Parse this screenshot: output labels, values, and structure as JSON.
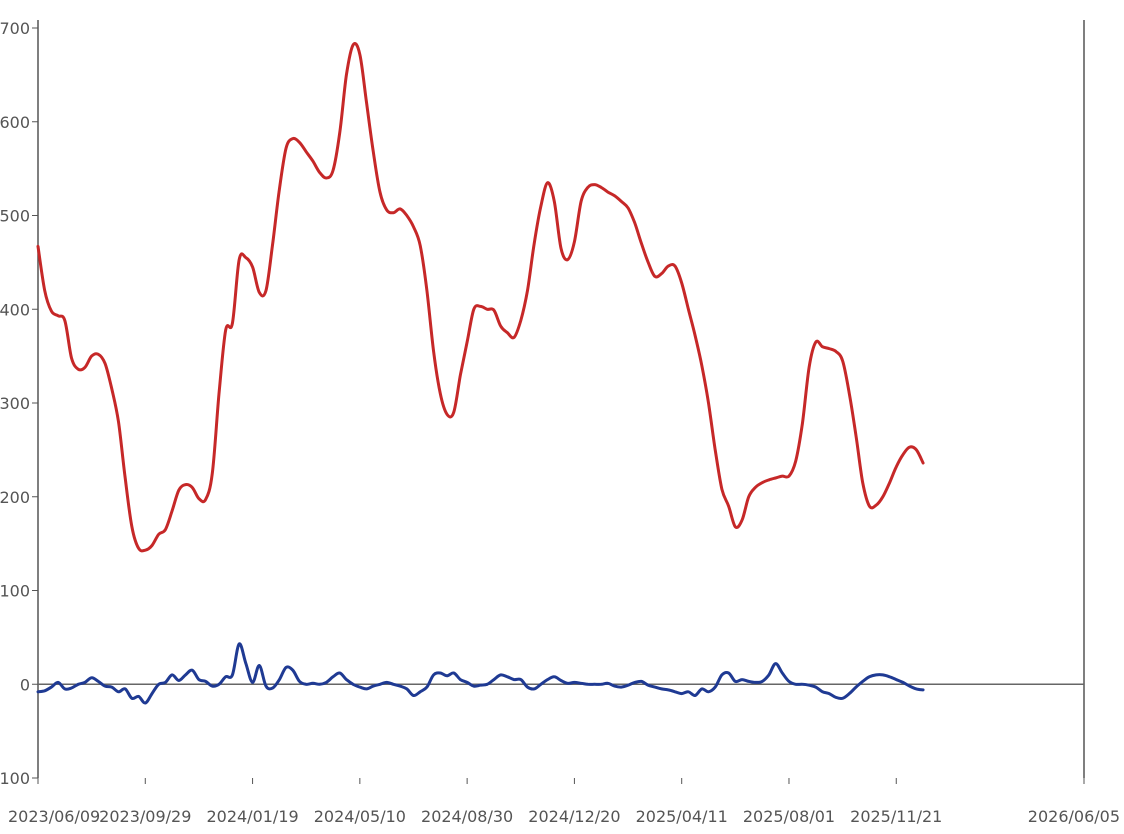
{
  "chart_data": {
    "type": "line",
    "title": "",
    "xlabel": "",
    "ylabel": "",
    "xlim": [
      "2023-06-09",
      "2026-06-05"
    ],
    "ylim": [
      -100,
      700
    ],
    "grid": false,
    "legend": "none",
    "y_ticks": [
      {
        "value": -100,
        "label": "-100"
      },
      {
        "value": 0,
        "label": "0"
      },
      {
        "value": 100,
        "label": "100"
      },
      {
        "value": 200,
        "label": "200"
      },
      {
        "value": 300,
        "label": "300"
      },
      {
        "value": 400,
        "label": "400"
      },
      {
        "value": 500,
        "label": "500"
      },
      {
        "value": 600,
        "label": "600"
      },
      {
        "value": 700,
        "label": "700"
      }
    ],
    "x_ticks": [
      {
        "value": "2023-06-09",
        "label": "2023/06/09"
      },
      {
        "value": "2023-09-29",
        "label": "2023/09/29"
      },
      {
        "value": "2024-01-19",
        "label": "2024/01/19"
      },
      {
        "value": "2024-05-10",
        "label": "2024/05/10"
      },
      {
        "value": "2024-08-30",
        "label": "2024/08/30"
      },
      {
        "value": "2024-12-20",
        "label": "2024/12/20"
      },
      {
        "value": "2025-04-11",
        "label": "2025/04/11"
      },
      {
        "value": "2025-08-01",
        "label": "2025/08/01"
      },
      {
        "value": "2025-11-21",
        "label": "2025/11/21"
      },
      {
        "value": "2026-06-05",
        "label": "2026/06/05"
      }
    ],
    "series": [
      {
        "color": "#c62828",
        "points": [
          [
            "2023-06-09",
            467
          ],
          [
            "2023-06-16",
            420
          ],
          [
            "2023-06-23",
            398
          ],
          [
            "2023-06-30",
            393
          ],
          [
            "2023-07-07",
            388
          ],
          [
            "2023-07-14",
            348
          ],
          [
            "2023-07-21",
            336
          ],
          [
            "2023-07-28",
            338
          ],
          [
            "2023-08-04",
            350
          ],
          [
            "2023-08-11",
            352
          ],
          [
            "2023-08-18",
            342
          ],
          [
            "2023-08-25",
            315
          ],
          [
            "2023-09-01",
            280
          ],
          [
            "2023-09-08",
            220
          ],
          [
            "2023-09-15",
            168
          ],
          [
            "2023-09-22",
            145
          ],
          [
            "2023-09-29",
            143
          ],
          [
            "2023-10-06",
            148
          ],
          [
            "2023-10-13",
            160
          ],
          [
            "2023-10-20",
            165
          ],
          [
            "2023-10-27",
            185
          ],
          [
            "2023-11-03",
            207
          ],
          [
            "2023-11-10",
            213
          ],
          [
            "2023-11-17",
            210
          ],
          [
            "2023-11-24",
            198
          ],
          [
            "2023-12-01",
            197
          ],
          [
            "2023-12-08",
            225
          ],
          [
            "2023-12-15",
            310
          ],
          [
            "2023-12-22",
            378
          ],
          [
            "2023-12-29",
            385
          ],
          [
            "2024-01-05",
            453
          ],
          [
            "2024-01-12",
            455
          ],
          [
            "2024-01-19",
            445
          ],
          [
            "2024-01-26",
            418
          ],
          [
            "2024-02-02",
            420
          ],
          [
            "2024-02-09",
            470
          ],
          [
            "2024-02-16",
            528
          ],
          [
            "2024-02-23",
            572
          ],
          [
            "2024-03-01",
            582
          ],
          [
            "2024-03-08",
            578
          ],
          [
            "2024-03-15",
            568
          ],
          [
            "2024-03-22",
            558
          ],
          [
            "2024-03-29",
            546
          ],
          [
            "2024-04-05",
            540
          ],
          [
            "2024-04-12",
            548
          ],
          [
            "2024-04-19",
            588
          ],
          [
            "2024-04-26",
            650
          ],
          [
            "2024-05-03",
            682
          ],
          [
            "2024-05-10",
            672
          ],
          [
            "2024-05-17",
            620
          ],
          [
            "2024-05-24",
            568
          ],
          [
            "2024-05-31",
            525
          ],
          [
            "2024-06-07",
            506
          ],
          [
            "2024-06-14",
            503
          ],
          [
            "2024-06-21",
            507
          ],
          [
            "2024-06-28",
            500
          ],
          [
            "2024-07-05",
            488
          ],
          [
            "2024-07-12",
            468
          ],
          [
            "2024-07-19",
            420
          ],
          [
            "2024-07-26",
            355
          ],
          [
            "2024-08-02",
            310
          ],
          [
            "2024-08-09",
            288
          ],
          [
            "2024-08-16",
            290
          ],
          [
            "2024-08-23",
            330
          ],
          [
            "2024-08-30",
            365
          ],
          [
            "2024-09-06",
            400
          ],
          [
            "2024-09-13",
            403
          ],
          [
            "2024-09-20",
            400
          ],
          [
            "2024-09-27",
            399
          ],
          [
            "2024-10-04",
            382
          ],
          [
            "2024-10-11",
            375
          ],
          [
            "2024-10-18",
            370
          ],
          [
            "2024-10-25",
            388
          ],
          [
            "2024-11-01",
            420
          ],
          [
            "2024-11-08",
            470
          ],
          [
            "2024-11-15",
            510
          ],
          [
            "2024-11-22",
            535
          ],
          [
            "2024-11-29",
            515
          ],
          [
            "2024-12-06",
            465
          ],
          [
            "2024-12-13",
            453
          ],
          [
            "2024-12-20",
            472
          ],
          [
            "2024-12-27",
            515
          ],
          [
            "2025-01-03",
            530
          ],
          [
            "2025-01-10",
            533
          ],
          [
            "2025-01-17",
            530
          ],
          [
            "2025-01-24",
            525
          ],
          [
            "2025-01-31",
            521
          ],
          [
            "2025-02-07",
            515
          ],
          [
            "2025-02-14",
            508
          ],
          [
            "2025-02-21",
            492
          ],
          [
            "2025-02-28",
            470
          ],
          [
            "2025-03-07",
            450
          ],
          [
            "2025-03-14",
            435
          ],
          [
            "2025-03-21",
            438
          ],
          [
            "2025-03-28",
            446
          ],
          [
            "2025-04-04",
            446
          ],
          [
            "2025-04-11",
            428
          ],
          [
            "2025-04-18",
            400
          ],
          [
            "2025-04-25",
            372
          ],
          [
            "2025-05-02",
            340
          ],
          [
            "2025-05-09",
            300
          ],
          [
            "2025-05-16",
            250
          ],
          [
            "2025-05-23",
            208
          ],
          [
            "2025-05-30",
            190
          ],
          [
            "2025-06-06",
            168
          ],
          [
            "2025-06-13",
            175
          ],
          [
            "2025-06-20",
            200
          ],
          [
            "2025-06-27",
            210
          ],
          [
            "2025-07-04",
            215
          ],
          [
            "2025-07-11",
            218
          ],
          [
            "2025-07-18",
            220
          ],
          [
            "2025-07-25",
            222
          ],
          [
            "2025-08-01",
            222
          ],
          [
            "2025-08-08",
            238
          ],
          [
            "2025-08-15",
            278
          ],
          [
            "2025-08-22",
            338
          ],
          [
            "2025-08-29",
            365
          ],
          [
            "2025-09-05",
            360
          ],
          [
            "2025-09-12",
            358
          ],
          [
            "2025-09-19",
            355
          ],
          [
            "2025-09-26",
            345
          ],
          [
            "2025-10-03",
            310
          ],
          [
            "2025-10-10",
            265
          ],
          [
            "2025-10-17",
            215
          ],
          [
            "2025-10-24",
            190
          ],
          [
            "2025-10-31",
            191
          ],
          [
            "2025-11-07",
            200
          ],
          [
            "2025-11-14",
            215
          ],
          [
            "2025-11-21",
            232
          ],
          [
            "2025-11-28",
            245
          ],
          [
            "2025-12-05",
            253
          ],
          [
            "2025-12-12",
            250
          ],
          [
            "2025-12-19",
            236
          ]
        ]
      },
      {
        "color": "#1f3a93",
        "points": [
          [
            "2023-06-09",
            -8
          ],
          [
            "2023-06-16",
            -7
          ],
          [
            "2023-06-23",
            -3
          ],
          [
            "2023-06-30",
            2
          ],
          [
            "2023-07-07",
            -5
          ],
          [
            "2023-07-14",
            -4
          ],
          [
            "2023-07-21",
            0
          ],
          [
            "2023-07-28",
            2
          ],
          [
            "2023-08-04",
            7
          ],
          [
            "2023-08-11",
            3
          ],
          [
            "2023-08-18",
            -2
          ],
          [
            "2023-08-25",
            -3
          ],
          [
            "2023-09-01",
            -8
          ],
          [
            "2023-09-08",
            -5
          ],
          [
            "2023-09-15",
            -15
          ],
          [
            "2023-09-22",
            -13
          ],
          [
            "2023-09-29",
            -20
          ],
          [
            "2023-10-06",
            -10
          ],
          [
            "2023-10-13",
            0
          ],
          [
            "2023-10-20",
            2
          ],
          [
            "2023-10-27",
            10
          ],
          [
            "2023-11-03",
            4
          ],
          [
            "2023-11-10",
            10
          ],
          [
            "2023-11-17",
            15
          ],
          [
            "2023-11-24",
            5
          ],
          [
            "2023-12-01",
            3
          ],
          [
            "2023-12-08",
            -2
          ],
          [
            "2023-12-15",
            0
          ],
          [
            "2023-12-22",
            8
          ],
          [
            "2023-12-29",
            10
          ],
          [
            "2024-01-05",
            43
          ],
          [
            "2024-01-12",
            22
          ],
          [
            "2024-01-19",
            2
          ],
          [
            "2024-01-26",
            20
          ],
          [
            "2024-02-02",
            -2
          ],
          [
            "2024-02-09",
            -4
          ],
          [
            "2024-02-16",
            5
          ],
          [
            "2024-02-23",
            18
          ],
          [
            "2024-03-01",
            15
          ],
          [
            "2024-03-08",
            3
          ],
          [
            "2024-03-15",
            0
          ],
          [
            "2024-03-22",
            1
          ],
          [
            "2024-03-29",
            0
          ],
          [
            "2024-04-05",
            2
          ],
          [
            "2024-04-12",
            8
          ],
          [
            "2024-04-19",
            12
          ],
          [
            "2024-04-26",
            5
          ],
          [
            "2024-05-03",
            0
          ],
          [
            "2024-05-10",
            -3
          ],
          [
            "2024-05-17",
            -5
          ],
          [
            "2024-05-24",
            -2
          ],
          [
            "2024-05-31",
            0
          ],
          [
            "2024-06-07",
            2
          ],
          [
            "2024-06-14",
            0
          ],
          [
            "2024-06-21",
            -2
          ],
          [
            "2024-06-28",
            -5
          ],
          [
            "2024-07-05",
            -12
          ],
          [
            "2024-07-12",
            -8
          ],
          [
            "2024-07-19",
            -3
          ],
          [
            "2024-07-26",
            10
          ],
          [
            "2024-08-02",
            12
          ],
          [
            "2024-08-09",
            9
          ],
          [
            "2024-08-16",
            12
          ],
          [
            "2024-08-23",
            5
          ],
          [
            "2024-08-30",
            2
          ],
          [
            "2024-09-06",
            -2
          ],
          [
            "2024-09-13",
            -1
          ],
          [
            "2024-09-20",
            0
          ],
          [
            "2024-09-27",
            5
          ],
          [
            "2024-10-04",
            10
          ],
          [
            "2024-10-11",
            8
          ],
          [
            "2024-10-18",
            5
          ],
          [
            "2024-10-25",
            5
          ],
          [
            "2024-11-01",
            -3
          ],
          [
            "2024-11-08",
            -5
          ],
          [
            "2024-11-15",
            0
          ],
          [
            "2024-11-22",
            5
          ],
          [
            "2024-11-29",
            8
          ],
          [
            "2024-12-06",
            4
          ],
          [
            "2024-12-13",
            1
          ],
          [
            "2024-12-20",
            2
          ],
          [
            "2024-12-27",
            1
          ],
          [
            "2025-01-03",
            0
          ],
          [
            "2025-01-10",
            0
          ],
          [
            "2025-01-17",
            0
          ],
          [
            "2025-01-24",
            1
          ],
          [
            "2025-01-31",
            -2
          ],
          [
            "2025-02-07",
            -3
          ],
          [
            "2025-02-14",
            -1
          ],
          [
            "2025-02-21",
            2
          ],
          [
            "2025-02-28",
            3
          ],
          [
            "2025-03-07",
            -1
          ],
          [
            "2025-03-14",
            -3
          ],
          [
            "2025-03-21",
            -5
          ],
          [
            "2025-03-28",
            -6
          ],
          [
            "2025-04-04",
            -8
          ],
          [
            "2025-04-11",
            -10
          ],
          [
            "2025-04-18",
            -8
          ],
          [
            "2025-04-25",
            -12
          ],
          [
            "2025-05-02",
            -5
          ],
          [
            "2025-05-09",
            -8
          ],
          [
            "2025-05-16",
            -3
          ],
          [
            "2025-05-23",
            10
          ],
          [
            "2025-05-30",
            12
          ],
          [
            "2025-06-06",
            3
          ],
          [
            "2025-06-13",
            5
          ],
          [
            "2025-06-20",
            3
          ],
          [
            "2025-06-27",
            2
          ],
          [
            "2025-07-04",
            3
          ],
          [
            "2025-07-11",
            10
          ],
          [
            "2025-07-18",
            22
          ],
          [
            "2025-07-25",
            12
          ],
          [
            "2025-08-01",
            3
          ],
          [
            "2025-08-08",
            0
          ],
          [
            "2025-08-15",
            0
          ],
          [
            "2025-08-22",
            -1
          ],
          [
            "2025-08-29",
            -3
          ],
          [
            "2025-09-05",
            -8
          ],
          [
            "2025-09-12",
            -10
          ],
          [
            "2025-09-19",
            -14
          ],
          [
            "2025-09-26",
            -15
          ],
          [
            "2025-10-03",
            -10
          ],
          [
            "2025-10-10",
            -3
          ],
          [
            "2025-10-17",
            3
          ],
          [
            "2025-10-24",
            8
          ],
          [
            "2025-10-31",
            10
          ],
          [
            "2025-11-07",
            10
          ],
          [
            "2025-11-14",
            8
          ],
          [
            "2025-11-21",
            5
          ],
          [
            "2025-11-28",
            2
          ],
          [
            "2025-12-05",
            -2
          ],
          [
            "2025-12-12",
            -5
          ],
          [
            "2025-12-19",
            -6
          ]
        ]
      }
    ]
  }
}
